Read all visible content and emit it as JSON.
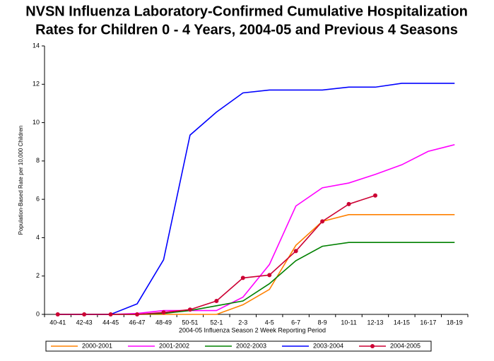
{
  "chart_data": {
    "type": "line",
    "title": [
      "NVSN Influenza Laboratory-Confirmed Cumulative Hospitalization",
      "Rates for Children 0 - 4 Years, 2004-05 and Previous 4 Seasons"
    ],
    "x_label": "2004-05 Influenza Season 2 Week Reporting Period",
    "y_label": "Population-Based Rate per 10,000 Children",
    "categories": [
      "40-41",
      "42-43",
      "44-45",
      "46-47",
      "48-49",
      "50-51",
      "52-1",
      "2-3",
      "4-5",
      "6-7",
      "8-9",
      "10-11",
      "12-13",
      "14-15",
      "16-17",
      "18-19"
    ],
    "ylim": [
      0,
      14
    ],
    "yticks": [
      0,
      2,
      4,
      6,
      8,
      10,
      12,
      14
    ],
    "grid": false,
    "legend": "bottom",
    "series": [
      {
        "name": "2000-2001",
        "color": "#ff8000",
        "markers": false,
        "values": [
          0,
          0,
          0,
          0,
          0,
          0,
          0,
          0.5,
          1.3,
          3.6,
          4.85,
          5.2,
          5.2,
          5.2,
          5.2,
          5.2
        ]
      },
      {
        "name": "2001-2002",
        "color": "#ff00ff",
        "markers": false,
        "values": [
          0,
          0,
          0,
          0.05,
          0.2,
          0.2,
          0.2,
          0.9,
          2.6,
          5.65,
          6.6,
          6.85,
          7.3,
          7.8,
          8.5,
          8.85
        ]
      },
      {
        "name": "2002-2003",
        "color": "#008000",
        "markers": false,
        "values": [
          0,
          0,
          0,
          0,
          0.05,
          0.2,
          0.45,
          0.7,
          1.6,
          2.8,
          3.55,
          3.75,
          3.75,
          3.75,
          3.75,
          3.75
        ]
      },
      {
        "name": "2003-2004",
        "color": "#0000ff",
        "markers": false,
        "values": [
          0,
          0,
          0,
          0.55,
          2.85,
          9.35,
          10.55,
          11.55,
          11.7,
          11.7,
          11.7,
          11.85,
          11.85,
          12.05,
          12.05,
          12.05
        ]
      },
      {
        "name": "2004-2005",
        "color": "#cc0033",
        "markers": true,
        "values": [
          0,
          0,
          0,
          0,
          0.1,
          0.25,
          0.7,
          1.9,
          2.05,
          3.3,
          4.85,
          5.75,
          6.2,
          null,
          null,
          null
        ]
      }
    ]
  }
}
